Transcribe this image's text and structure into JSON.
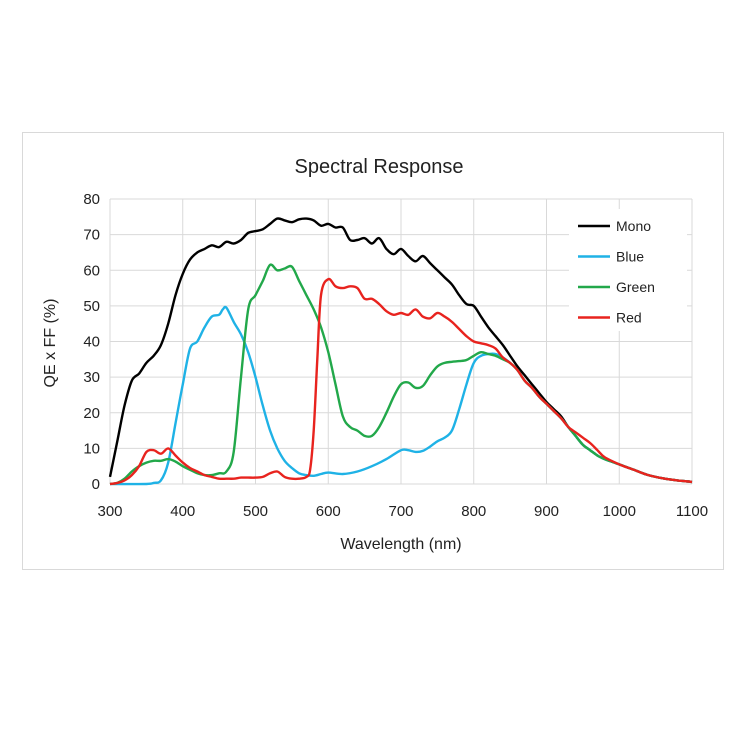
{
  "chart_data": {
    "type": "line",
    "title": "Spectral Response",
    "xlabel": "Wavelength (nm)",
    "ylabel": "QE x FF (%)",
    "xlim": [
      300,
      1100
    ],
    "ylim": [
      0,
      80
    ],
    "xticks": [
      300,
      400,
      500,
      600,
      700,
      800,
      900,
      1000,
      1100
    ],
    "yticks": [
      0,
      10,
      20,
      30,
      40,
      50,
      60,
      70,
      80
    ],
    "grid": true,
    "legend_position": "top-right",
    "series": [
      {
        "name": "Mono",
        "color": "#000000",
        "x": [
          300,
          310,
          320,
          330,
          340,
          350,
          360,
          370,
          380,
          390,
          400,
          410,
          420,
          430,
          440,
          450,
          460,
          470,
          480,
          490,
          500,
          510,
          520,
          530,
          540,
          550,
          560,
          570,
          580,
          590,
          600,
          610,
          620,
          630,
          640,
          650,
          660,
          670,
          680,
          690,
          700,
          710,
          720,
          730,
          740,
          750,
          760,
          770,
          780,
          790,
          800,
          810,
          820,
          830,
          840,
          850,
          860,
          870,
          880,
          890,
          900,
          910,
          920,
          930,
          940,
          950,
          960,
          970,
          980,
          1000,
          1020,
          1040,
          1060,
          1080,
          1100
        ],
        "values": [
          2,
          12,
          22,
          29,
          31,
          34,
          36,
          39,
          45,
          53,
          59,
          63,
          65,
          66,
          67,
          66.5,
          68,
          67.5,
          68.5,
          70.5,
          71,
          71.5,
          73,
          74.5,
          74,
          73.5,
          74.3,
          74.5,
          74,
          72.5,
          73,
          72,
          72,
          68.5,
          68.5,
          69,
          67.5,
          69,
          66,
          64.5,
          66,
          64,
          62.5,
          64,
          62,
          60,
          58,
          56,
          53,
          50.5,
          50,
          47,
          44,
          41.5,
          39,
          36,
          33,
          30.5,
          28,
          25.5,
          23,
          21,
          19,
          16,
          13.5,
          11,
          9.5,
          8,
          7,
          5.5,
          4,
          2.5,
          1.6,
          1,
          0.6
        ]
      },
      {
        "name": "Blue",
        "color": "#1fb2e6",
        "x": [
          300,
          350,
          360,
          370,
          380,
          390,
          400,
          410,
          420,
          430,
          440,
          450,
          455,
          460,
          470,
          480,
          490,
          500,
          510,
          520,
          530,
          540,
          550,
          560,
          570,
          580,
          590,
          600,
          620,
          640,
          660,
          680,
          700,
          710,
          720,
          730,
          740,
          750,
          760,
          770,
          780,
          790,
          800,
          810,
          820,
          830,
          840,
          850,
          860,
          870,
          880,
          890,
          900,
          910,
          920,
          930,
          940,
          950,
          960,
          970,
          980,
          1000,
          1020,
          1040,
          1060,
          1080,
          1100
        ],
        "values": [
          0,
          0,
          0.3,
          1,
          6,
          17,
          28,
          38,
          40,
          44,
          47,
          47.5,
          49,
          49.5,
          45.5,
          42,
          37,
          30,
          22,
          15,
          10,
          6.5,
          4.5,
          3,
          2.5,
          2.3,
          2.8,
          3.2,
          2.8,
          3.5,
          5,
          7,
          9.5,
          9.5,
          9,
          9.3,
          10.5,
          12,
          13,
          15,
          21,
          28,
          34,
          36,
          36.5,
          36.5,
          35.5,
          34,
          32,
          29,
          27,
          24.5,
          22.5,
          20.5,
          18.5,
          16,
          13.5,
          11,
          9.5,
          8,
          7,
          5.5,
          4,
          2.5,
          1.6,
          1,
          0.6
        ]
      },
      {
        "name": "Green",
        "color": "#22a84a",
        "x": [
          300,
          310,
          320,
          330,
          340,
          350,
          360,
          370,
          380,
          390,
          400,
          410,
          420,
          430,
          440,
          450,
          460,
          470,
          480,
          490,
          500,
          510,
          520,
          530,
          540,
          550,
          560,
          570,
          580,
          590,
          600,
          610,
          620,
          630,
          640,
          650,
          660,
          670,
          680,
          690,
          700,
          710,
          720,
          730,
          740,
          750,
          760,
          770,
          780,
          790,
          800,
          810,
          820,
          830,
          840,
          850,
          860,
          870,
          880,
          890,
          900,
          910,
          920,
          930,
          940,
          950,
          960,
          970,
          980,
          1000,
          1020,
          1040,
          1060,
          1080,
          1100
        ],
        "values": [
          0,
          0.3,
          1.5,
          3.5,
          5,
          6,
          6.5,
          6.5,
          7,
          6.3,
          5,
          4,
          3,
          2.5,
          2.5,
          3,
          3.5,
          9,
          30,
          49,
          53,
          57,
          61.5,
          60,
          60.5,
          61,
          57,
          53,
          49,
          44,
          37,
          28,
          19,
          16,
          15,
          13.5,
          13.5,
          16,
          20,
          24.5,
          28,
          28.5,
          27,
          27.5,
          30.5,
          33,
          34,
          34.3,
          34.5,
          34.8,
          36,
          37,
          36.5,
          36,
          35,
          34,
          32,
          29,
          27,
          24.5,
          22.5,
          20.5,
          18.5,
          16,
          13.5,
          11,
          9.5,
          8,
          7,
          5.5,
          4,
          2.5,
          1.6,
          1,
          0.6
        ]
      },
      {
        "name": "Red",
        "color": "#e8231e",
        "x": [
          300,
          310,
          320,
          330,
          340,
          350,
          360,
          370,
          380,
          390,
          400,
          410,
          420,
          430,
          440,
          450,
          460,
          470,
          480,
          490,
          500,
          510,
          520,
          530,
          540,
          550,
          560,
          570,
          575,
          580,
          585,
          590,
          600,
          610,
          620,
          630,
          640,
          650,
          660,
          670,
          680,
          690,
          700,
          710,
          720,
          730,
          740,
          750,
          760,
          770,
          780,
          790,
          800,
          810,
          820,
          830,
          840,
          850,
          860,
          870,
          880,
          890,
          900,
          910,
          920,
          930,
          940,
          950,
          960,
          970,
          980,
          1000,
          1020,
          1040,
          1060,
          1080,
          1100
        ],
        "values": [
          0,
          0.3,
          1,
          2.5,
          5,
          9,
          9.5,
          8.5,
          10,
          8,
          6,
          4.5,
          3.5,
          2.5,
          2,
          1.5,
          1.5,
          1.5,
          1.8,
          1.8,
          1.8,
          2,
          3,
          3.5,
          2,
          1.5,
          1.5,
          2,
          4,
          15,
          35,
          53,
          57.5,
          55.5,
          55,
          55.5,
          55,
          52,
          52,
          50.5,
          48.5,
          47.5,
          48,
          47.5,
          49,
          47,
          46.5,
          48,
          47,
          45.5,
          43.5,
          41.5,
          40,
          39.5,
          39,
          38,
          35.5,
          34,
          32,
          29,
          27,
          24.5,
          22.5,
          20.5,
          18.5,
          16,
          14.5,
          13,
          11.5,
          9.5,
          7.5,
          5.5,
          4,
          2.5,
          1.6,
          1,
          0.6
        ]
      }
    ]
  }
}
